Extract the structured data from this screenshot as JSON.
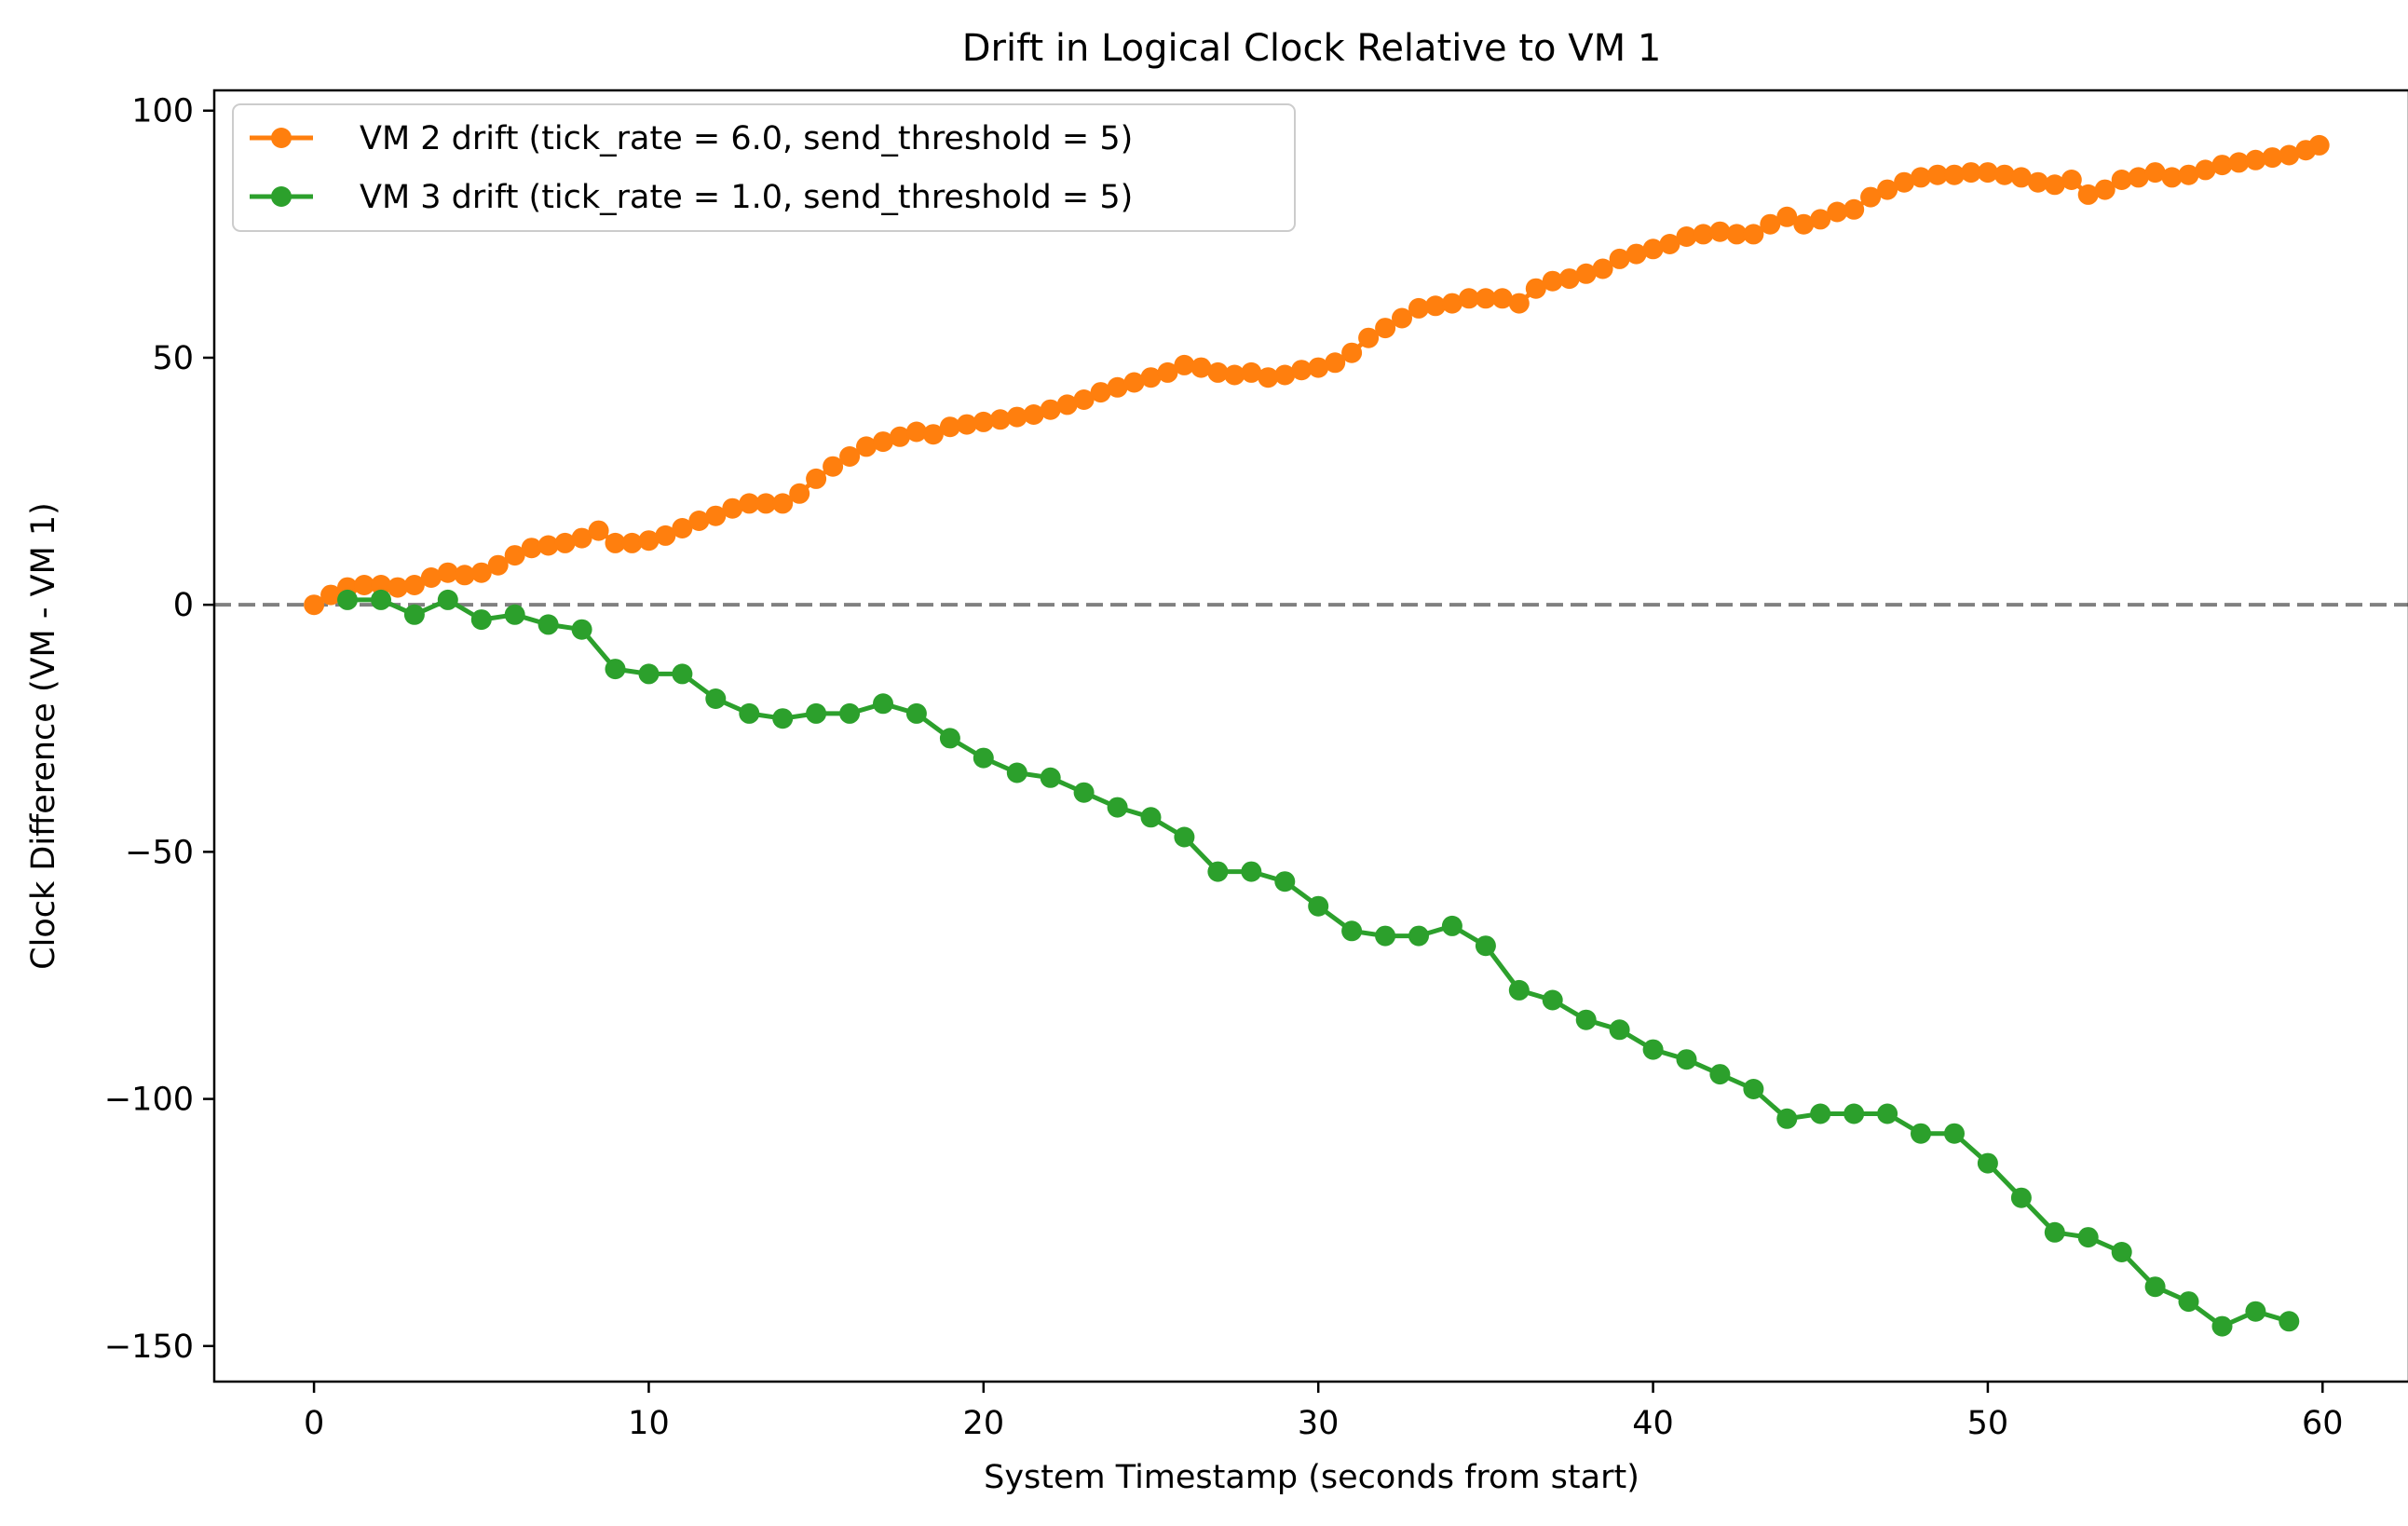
{
  "chart_data": {
    "type": "line",
    "title": "Drift in Logical Clock Relative to VM 1",
    "xlabel": "System Timestamp (seconds from start)",
    "ylabel": "Clock Difference (VM - VM 1)",
    "xlim": [
      -2.98,
      62.58
    ],
    "ylim": [
      -157.2,
      104.1
    ],
    "xticks": [
      0,
      10,
      20,
      30,
      40,
      50,
      60
    ],
    "yticks": [
      100,
      50,
      0,
      -50,
      -100,
      -150
    ],
    "xtick_labels": [
      "0",
      "10",
      "20",
      "30",
      "40",
      "50",
      "60"
    ],
    "ytick_labels": [
      "100",
      "50",
      "0",
      "−50",
      "−100",
      "−150"
    ],
    "grid": false,
    "legend_position": "top-left",
    "reference_line": {
      "y": 0,
      "style": "dashed",
      "color": "#808080"
    },
    "series": [
      {
        "name": "VM 2 drift (tick_rate = 6.0, send_threshold = 5)",
        "color": "#ff7f0e",
        "marker": "circle",
        "x": [
          0,
          0.5,
          1,
          1.5,
          2,
          2.5,
          3,
          3.5,
          4,
          4.5,
          5,
          5.5,
          6,
          6.5,
          7,
          7.5,
          8,
          8.5,
          9,
          9.5,
          10,
          10.5,
          11,
          11.5,
          12,
          12.5,
          13,
          13.5,
          14,
          14.5,
          15,
          15.5,
          16,
          16.5,
          17,
          17.5,
          18,
          18.5,
          19,
          19.5,
          20,
          20.5,
          21,
          21.5,
          22,
          22.5,
          23,
          23.5,
          24,
          24.5,
          25,
          25.5,
          26,
          26.5,
          27,
          27.5,
          28,
          28.5,
          29,
          29.5,
          30,
          30.5,
          31,
          31.5,
          32,
          32.5,
          33,
          33.5,
          34,
          34.5,
          35,
          35.5,
          36,
          36.5,
          37,
          37.5,
          38,
          38.5,
          39,
          39.5,
          40,
          40.5,
          41,
          41.5,
          42,
          42.5,
          43,
          43.5,
          44,
          44.5,
          45,
          45.5,
          46,
          46.5,
          47,
          47.5,
          48,
          48.5,
          49,
          49.5,
          50,
          50.5,
          51,
          51.5,
          52,
          52.5,
          53,
          53.5,
          54,
          54.5,
          55,
          55.5,
          56,
          56.5,
          57,
          57.5,
          58,
          58.5,
          59,
          59.5,
          59.9
        ],
        "y": [
          0,
          2,
          3.5,
          4,
          4,
          3.5,
          4,
          5.5,
          6.5,
          6,
          6.5,
          8,
          10,
          11.5,
          12,
          12.5,
          13.5,
          15,
          12.5,
          12.5,
          13,
          14,
          15.5,
          17,
          18,
          19.5,
          20.5,
          20.5,
          20.5,
          22.5,
          25.5,
          28,
          30,
          32,
          33,
          34,
          35,
          34.5,
          36,
          36.5,
          37,
          37.5,
          38,
          38.5,
          39.5,
          40.5,
          41.5,
          43,
          44,
          45,
          46,
          47,
          48.5,
          48,
          47,
          46.5,
          47,
          46,
          46.5,
          47.5,
          48,
          49,
          51,
          54,
          56,
          58,
          60,
          60.5,
          61,
          62,
          62,
          62,
          61,
          64,
          65.5,
          66,
          67,
          68,
          70,
          71,
          72,
          73,
          74.5,
          75,
          75.5,
          75,
          75,
          77,
          78.5,
          77,
          78,
          79.5,
          80,
          82.5,
          84,
          85.5,
          86.5,
          87,
          87,
          87.5,
          87.5,
          87,
          86.5,
          85.5,
          85,
          86,
          83,
          84,
          86,
          86.5,
          87.5,
          86.5,
          87,
          88,
          89,
          89.5,
          90,
          90.5,
          91,
          92,
          93
        ]
      },
      {
        "name": "VM 3 drift (tick_rate = 1.0, send_threshold = 5)",
        "color": "#2ca02c",
        "marker": "circle",
        "x": [
          1,
          2,
          3,
          4,
          5,
          6,
          7,
          8,
          9,
          10,
          11,
          12,
          13,
          14,
          15,
          16,
          17,
          18,
          19,
          20,
          21,
          22,
          23,
          24,
          25,
          26,
          27,
          28,
          29,
          30,
          31,
          32,
          33,
          34,
          35,
          36,
          37,
          38,
          39,
          40,
          41,
          42,
          43,
          44,
          45,
          46,
          47,
          48,
          49,
          50,
          51,
          52,
          53,
          54,
          55,
          56,
          57,
          58,
          59
        ],
        "y": [
          1,
          1,
          -2,
          1,
          -3,
          -2,
          -4,
          -5,
          -13,
          -14,
          -14,
          -19,
          -22,
          -23,
          -22,
          -22,
          -20,
          -22,
          -27,
          -31,
          -34,
          -35,
          -38,
          -41,
          -43,
          -47,
          -54,
          -54,
          -56,
          -61,
          -66,
          -67,
          -67,
          -65,
          -69,
          -78,
          -80,
          -84,
          -86,
          -90,
          -92,
          -95,
          -98,
          -104,
          -103,
          -103,
          -103,
          -107,
          -107,
          -113,
          -120,
          -127,
          -128,
          -131,
          -138,
          -141,
          -146,
          -143,
          -145
        ]
      }
    ]
  }
}
